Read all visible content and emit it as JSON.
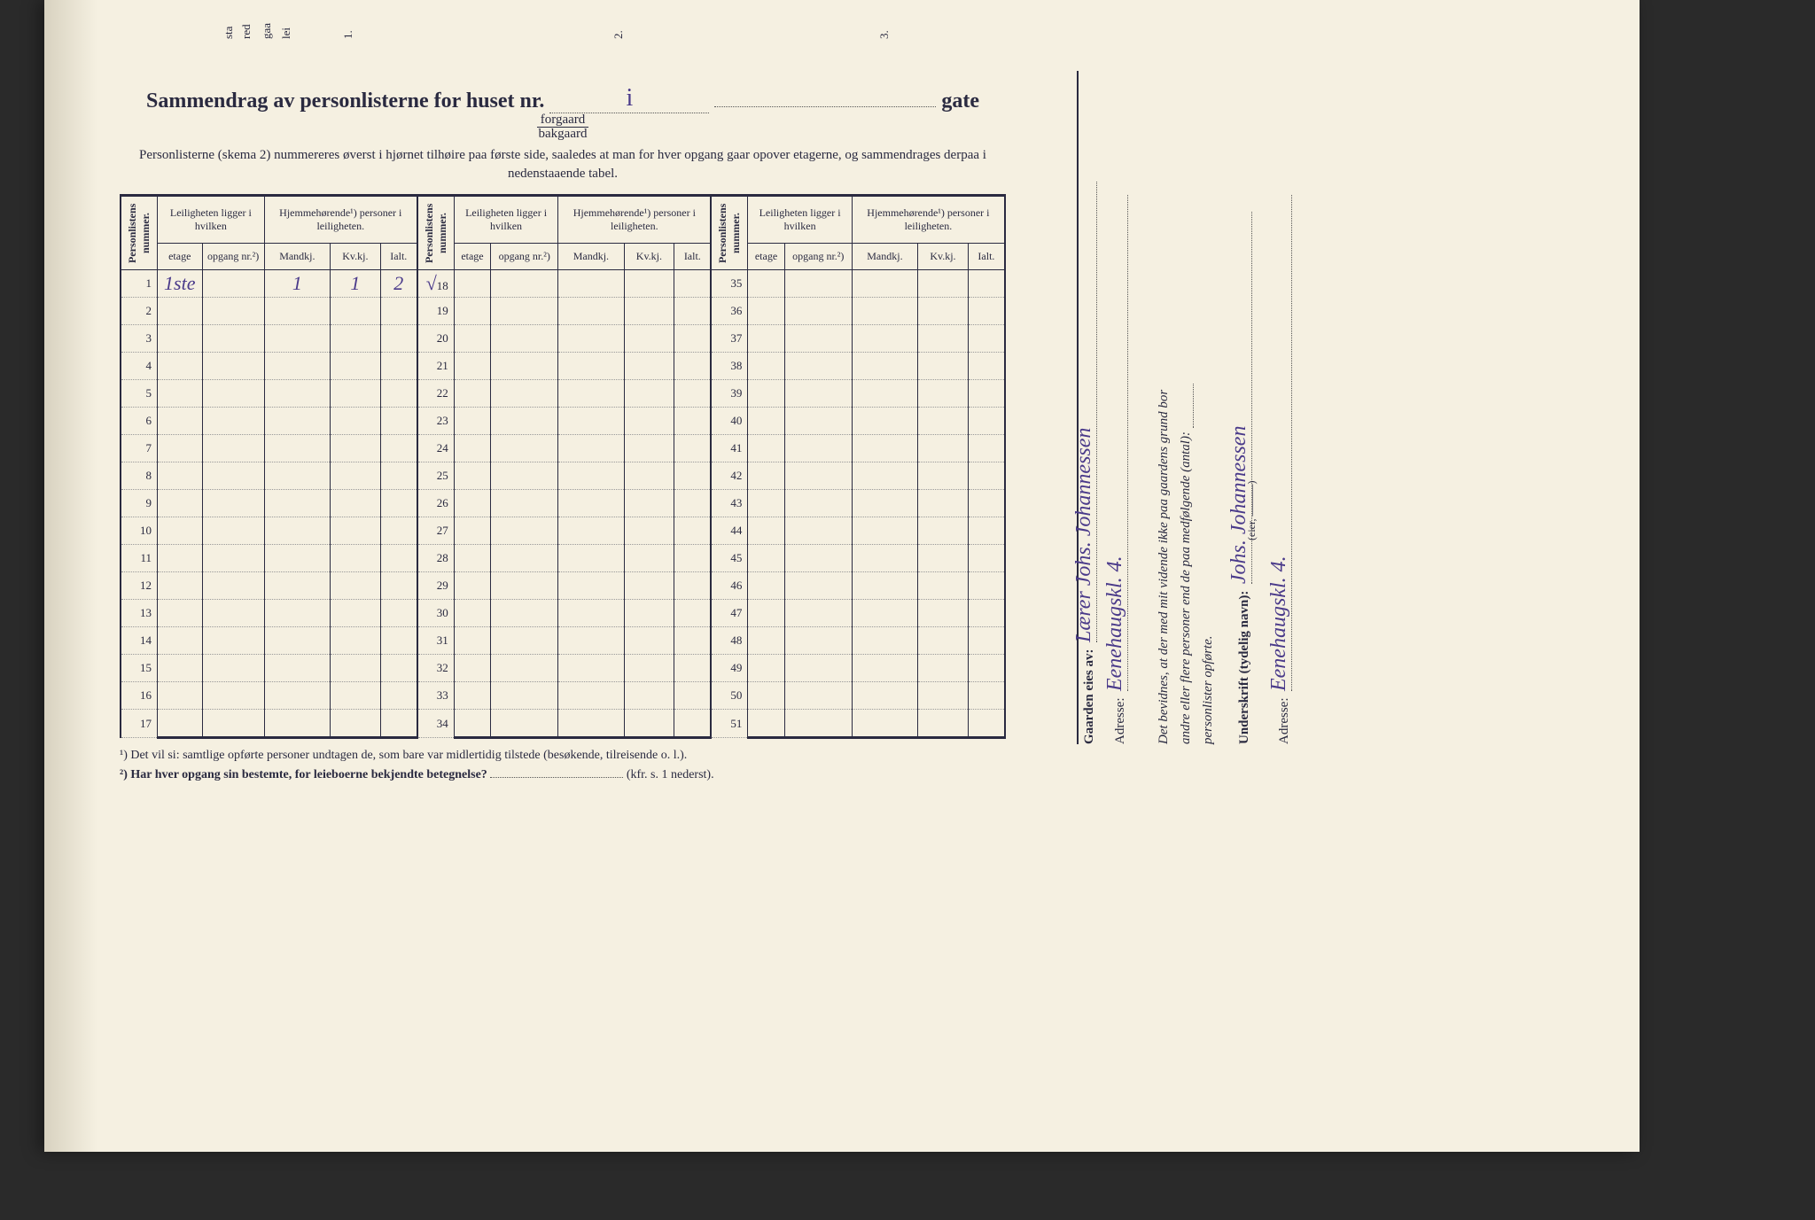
{
  "title": {
    "part1": "Sammendrag av personlisterne for huset nr.",
    "blank1": "i",
    "part2": "gate",
    "frac_top": "forgaard",
    "frac_bot": "bakgaard"
  },
  "subtitle": "Personlisterne (skema 2) nummereres øverst i hjørnet tilhøire paa første side, saaledes at man for hver opgang gaar opover etagerne, og sammendrages derpaa i nedenstaaende tabel.",
  "headers": {
    "personlistens": "Personlistens nummer.",
    "leiligheten": "Leiligheten ligger i hvilken",
    "hjemme": "Hjemmehørende¹) personer i leiligheten.",
    "etage": "etage",
    "opgang": "opgang nr.²)",
    "mandkj": "Mandkj.",
    "kvkj": "Kv.kj.",
    "ialt": "Ialt."
  },
  "row_ranges": [
    [
      1,
      17
    ],
    [
      18,
      34
    ],
    [
      35,
      51
    ]
  ],
  "handwritten_row1": {
    "etage": "1ste",
    "mandkj": "1",
    "kvkj": "1",
    "ialt": "2"
  },
  "check18": "√",
  "footnotes": {
    "f1": "¹)  Det vil si: samtlige opførte personer undtagen de, som bare var midlertidig tilstede (besøkende, tilreisende o. l.).",
    "f2a": "²)  Har hver opgang sin bestemte, for leieboerne bekjendte betegnelse?",
    "f2b": "(kfr. s. 1 nederst)."
  },
  "right": {
    "gaarden": "Gaarden eies av:",
    "owner": "Lærer Johs. Johannessen",
    "adresse_label": "Adresse:",
    "adresse_val": "Eenehaugskl. 4.",
    "bevidnes1": "Det bevidnes, at der med mit vidende ikke paa gaardens grund bor",
    "bevidnes2": "andre eller flere personer end de paa medfølgende (antal):",
    "personlister": "personlister opførte.",
    "underskrift_label": "Underskrift (tydelig navn):",
    "underskrift_val": "Johs. Johannessen",
    "eier": "(eier, ———)",
    "adresse2_val": "Eenehaugskl. 4."
  },
  "stubs": {
    "s1": "1.",
    "s2": "2.",
    "s3": "3.",
    "sta": "sta",
    "red": "red",
    "gaa": "gaa",
    "lei": "lei"
  }
}
